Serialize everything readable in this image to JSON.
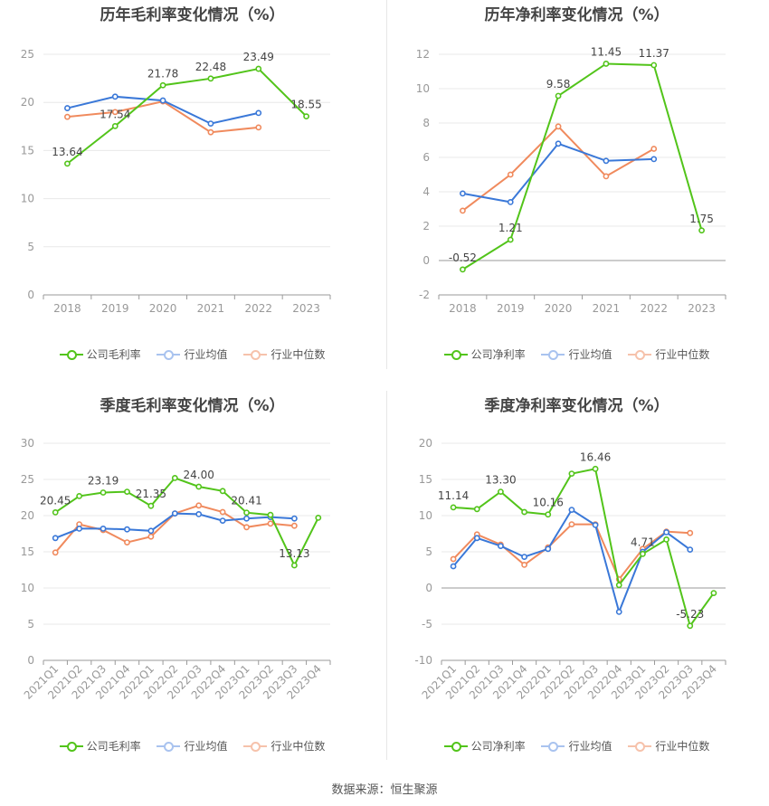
{
  "colors": {
    "company": "#52c41a",
    "avg": "#3a78d8",
    "median": "#f08a5d",
    "axis": "#999999",
    "grid": "#e8e8e8"
  },
  "source": "数据来源：恒生聚源",
  "legend_labels": {
    "gross": [
      "公司毛利率",
      "行业均值",
      "行业中位数"
    ],
    "net": [
      "公司净利率",
      "行业均值",
      "行业中位数"
    ]
  },
  "chart_data": [
    {
      "type": "line",
      "title": "历年毛利率变化情况（%）",
      "categories": [
        "2018",
        "2019",
        "2020",
        "2021",
        "2022",
        "2023"
      ],
      "ylim": [
        0,
        25
      ],
      "yticks": [
        0,
        5,
        10,
        15,
        20,
        25
      ],
      "legend_position": "bottom",
      "series": [
        {
          "name": "公司毛利率",
          "values": [
            13.64,
            17.54,
            21.78,
            22.48,
            23.49,
            18.55
          ],
          "labels": [
            "13.64",
            "17.54",
            "21.78",
            "22.48",
            "23.49",
            "18.55"
          ]
        },
        {
          "name": "行业均值",
          "values": [
            19.4,
            20.6,
            20.2,
            17.8,
            18.9,
            null
          ]
        },
        {
          "name": "行业中位数",
          "values": [
            18.5,
            19.0,
            20.1,
            16.9,
            17.4,
            null
          ]
        }
      ]
    },
    {
      "type": "line",
      "title": "历年净利率变化情况（%）",
      "categories": [
        "2018",
        "2019",
        "2020",
        "2021",
        "2022",
        "2023"
      ],
      "ylim": [
        -2,
        12
      ],
      "yticks": [
        -2,
        0,
        2,
        4,
        6,
        8,
        10,
        12
      ],
      "legend_position": "bottom",
      "series": [
        {
          "name": "公司净利率",
          "values": [
            -0.52,
            1.21,
            9.58,
            11.45,
            11.37,
            1.75
          ],
          "labels": [
            "-0.52",
            "1.21",
            "9.58",
            "11.45",
            "11.37",
            "1.75"
          ]
        },
        {
          "name": "行业均值",
          "values": [
            3.9,
            3.4,
            6.8,
            5.8,
            5.9,
            null
          ]
        },
        {
          "name": "行业中位数",
          "values": [
            2.9,
            5.0,
            7.8,
            4.9,
            6.5,
            null
          ]
        }
      ]
    },
    {
      "type": "line",
      "title": "季度毛利率变化情况（%）",
      "categories": [
        "2021Q1",
        "2021Q2",
        "2021Q3",
        "2021Q4",
        "2022Q1",
        "2022Q2",
        "2022Q3",
        "2022Q4",
        "2023Q1",
        "2023Q2",
        "2023Q3",
        "2023Q4"
      ],
      "ylim": [
        0,
        30
      ],
      "yticks": [
        0,
        5,
        10,
        15,
        20,
        25,
        30
      ],
      "legend_position": "bottom",
      "series": [
        {
          "name": "公司毛利率",
          "values": [
            20.45,
            22.7,
            23.19,
            23.3,
            21.35,
            25.2,
            24.0,
            23.4,
            20.41,
            20.1,
            13.13,
            19.7
          ],
          "labels": [
            "20.45",
            "",
            "23.19",
            "",
            "21.35",
            "",
            "24.00",
            "",
            "20.41",
            "",
            "13.13",
            ""
          ]
        },
        {
          "name": "行业均值",
          "values": [
            16.9,
            18.2,
            18.2,
            18.1,
            17.9,
            20.3,
            20.2,
            19.3,
            19.6,
            19.8,
            19.6,
            null
          ]
        },
        {
          "name": "行业中位数",
          "values": [
            14.9,
            18.8,
            18.0,
            16.3,
            17.1,
            20.3,
            21.4,
            20.5,
            18.4,
            18.9,
            18.6,
            null
          ]
        }
      ]
    },
    {
      "type": "line",
      "title": "季度净利率变化情况（%）",
      "categories": [
        "2021Q1",
        "2021Q2",
        "2021Q3",
        "2021Q4",
        "2022Q1",
        "2022Q2",
        "2022Q3",
        "2022Q4",
        "2023Q1",
        "2023Q2",
        "2023Q3",
        "2023Q4"
      ],
      "ylim": [
        -10,
        20
      ],
      "yticks": [
        -10,
        -5,
        0,
        5,
        10,
        15,
        20
      ],
      "legend_position": "bottom",
      "series": [
        {
          "name": "公司净利率",
          "values": [
            11.14,
            10.9,
            13.3,
            10.5,
            10.16,
            15.8,
            16.46,
            0.4,
            4.71,
            6.7,
            -5.23,
            -0.7
          ],
          "labels": [
            "11.14",
            "",
            "13.30",
            "",
            "10.16",
            "",
            "16.46",
            "",
            "4.71",
            "",
            "-5.23",
            ""
          ]
        },
        {
          "name": "行业均值",
          "values": [
            3.0,
            6.9,
            5.8,
            4.3,
            5.4,
            10.8,
            8.7,
            -3.3,
            5.0,
            7.7,
            5.3,
            null
          ]
        },
        {
          "name": "行业中位数",
          "values": [
            4.0,
            7.4,
            6.0,
            3.2,
            5.6,
            8.8,
            8.8,
            1.2,
            5.4,
            7.8,
            7.6,
            null
          ]
        }
      ]
    }
  ]
}
